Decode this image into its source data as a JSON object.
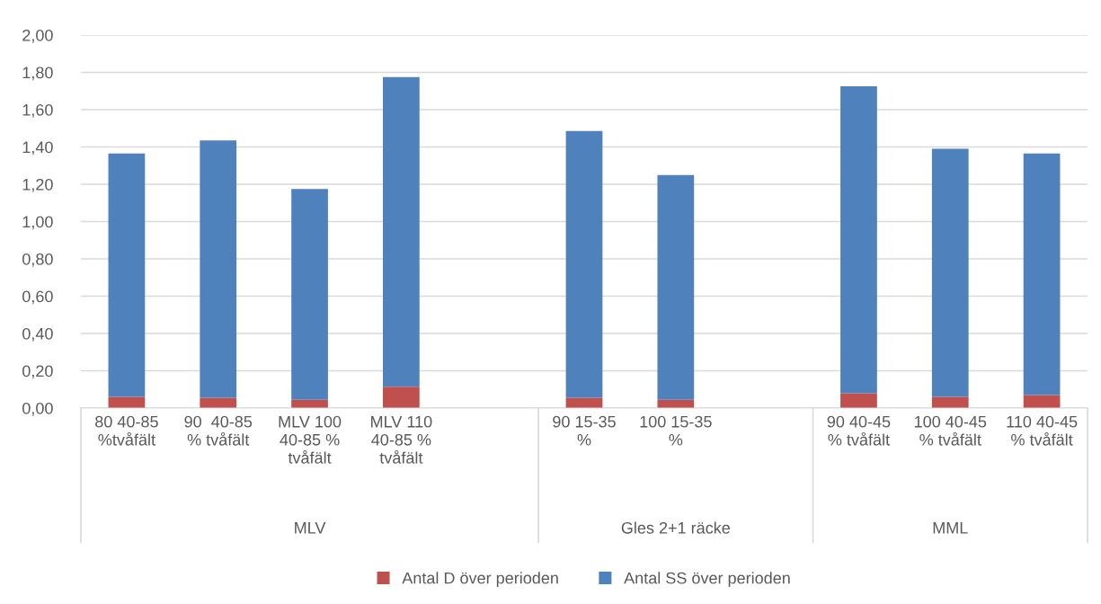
{
  "chart_data": {
    "type": "bar",
    "stacked": true,
    "categories": [
      "80 40-85 %tvåfält",
      "90  40-85 % tvåfält",
      "MLV 100 40-85 % tvåfält",
      "MLV 110 40-85 % tvåfält",
      null,
      "90 15-35 %",
      "100 15-35 %",
      null,
      "90 40-45 % tvåfält",
      "100 40-45 % tvåfält",
      "110 40-45 % tvåfält"
    ],
    "series": [
      {
        "name": "Antal D över perioden",
        "color": "#c0504d",
        "values": [
          0.06,
          0.055,
          0.045,
          0.115,
          null,
          0.055,
          0.045,
          null,
          0.08,
          0.06,
          0.07
        ]
      },
      {
        "name": "Antal SS över perioden",
        "color": "#4f81bd",
        "values": [
          1.305,
          1.38,
          1.13,
          1.66,
          null,
          1.43,
          1.205,
          null,
          1.645,
          1.33,
          1.295
        ]
      }
    ],
    "annotations": [
      "MLV",
      "Gles 2+1 räcke",
      "MML"
    ],
    "ylim": [
      0,
      2
    ],
    "yticks": [
      {
        "value": 0,
        "label": "0,00"
      },
      {
        "value": 0.2,
        "label": "0,20"
      },
      {
        "value": 0.4,
        "label": "0,40"
      },
      {
        "value": 0.6,
        "label": "0,60"
      },
      {
        "value": 0.8,
        "label": "0,80"
      },
      {
        "value": 1.0,
        "label": "1,00"
      },
      {
        "value": 1.2,
        "label": "1,20"
      },
      {
        "value": 1.4,
        "label": "1,40"
      },
      {
        "value": 1.6,
        "label": "1,60"
      },
      {
        "value": 1.8,
        "label": "1,80"
      },
      {
        "value": 2.0,
        "label": "2,00"
      }
    ],
    "grid": "y",
    "legend": "bottom"
  }
}
